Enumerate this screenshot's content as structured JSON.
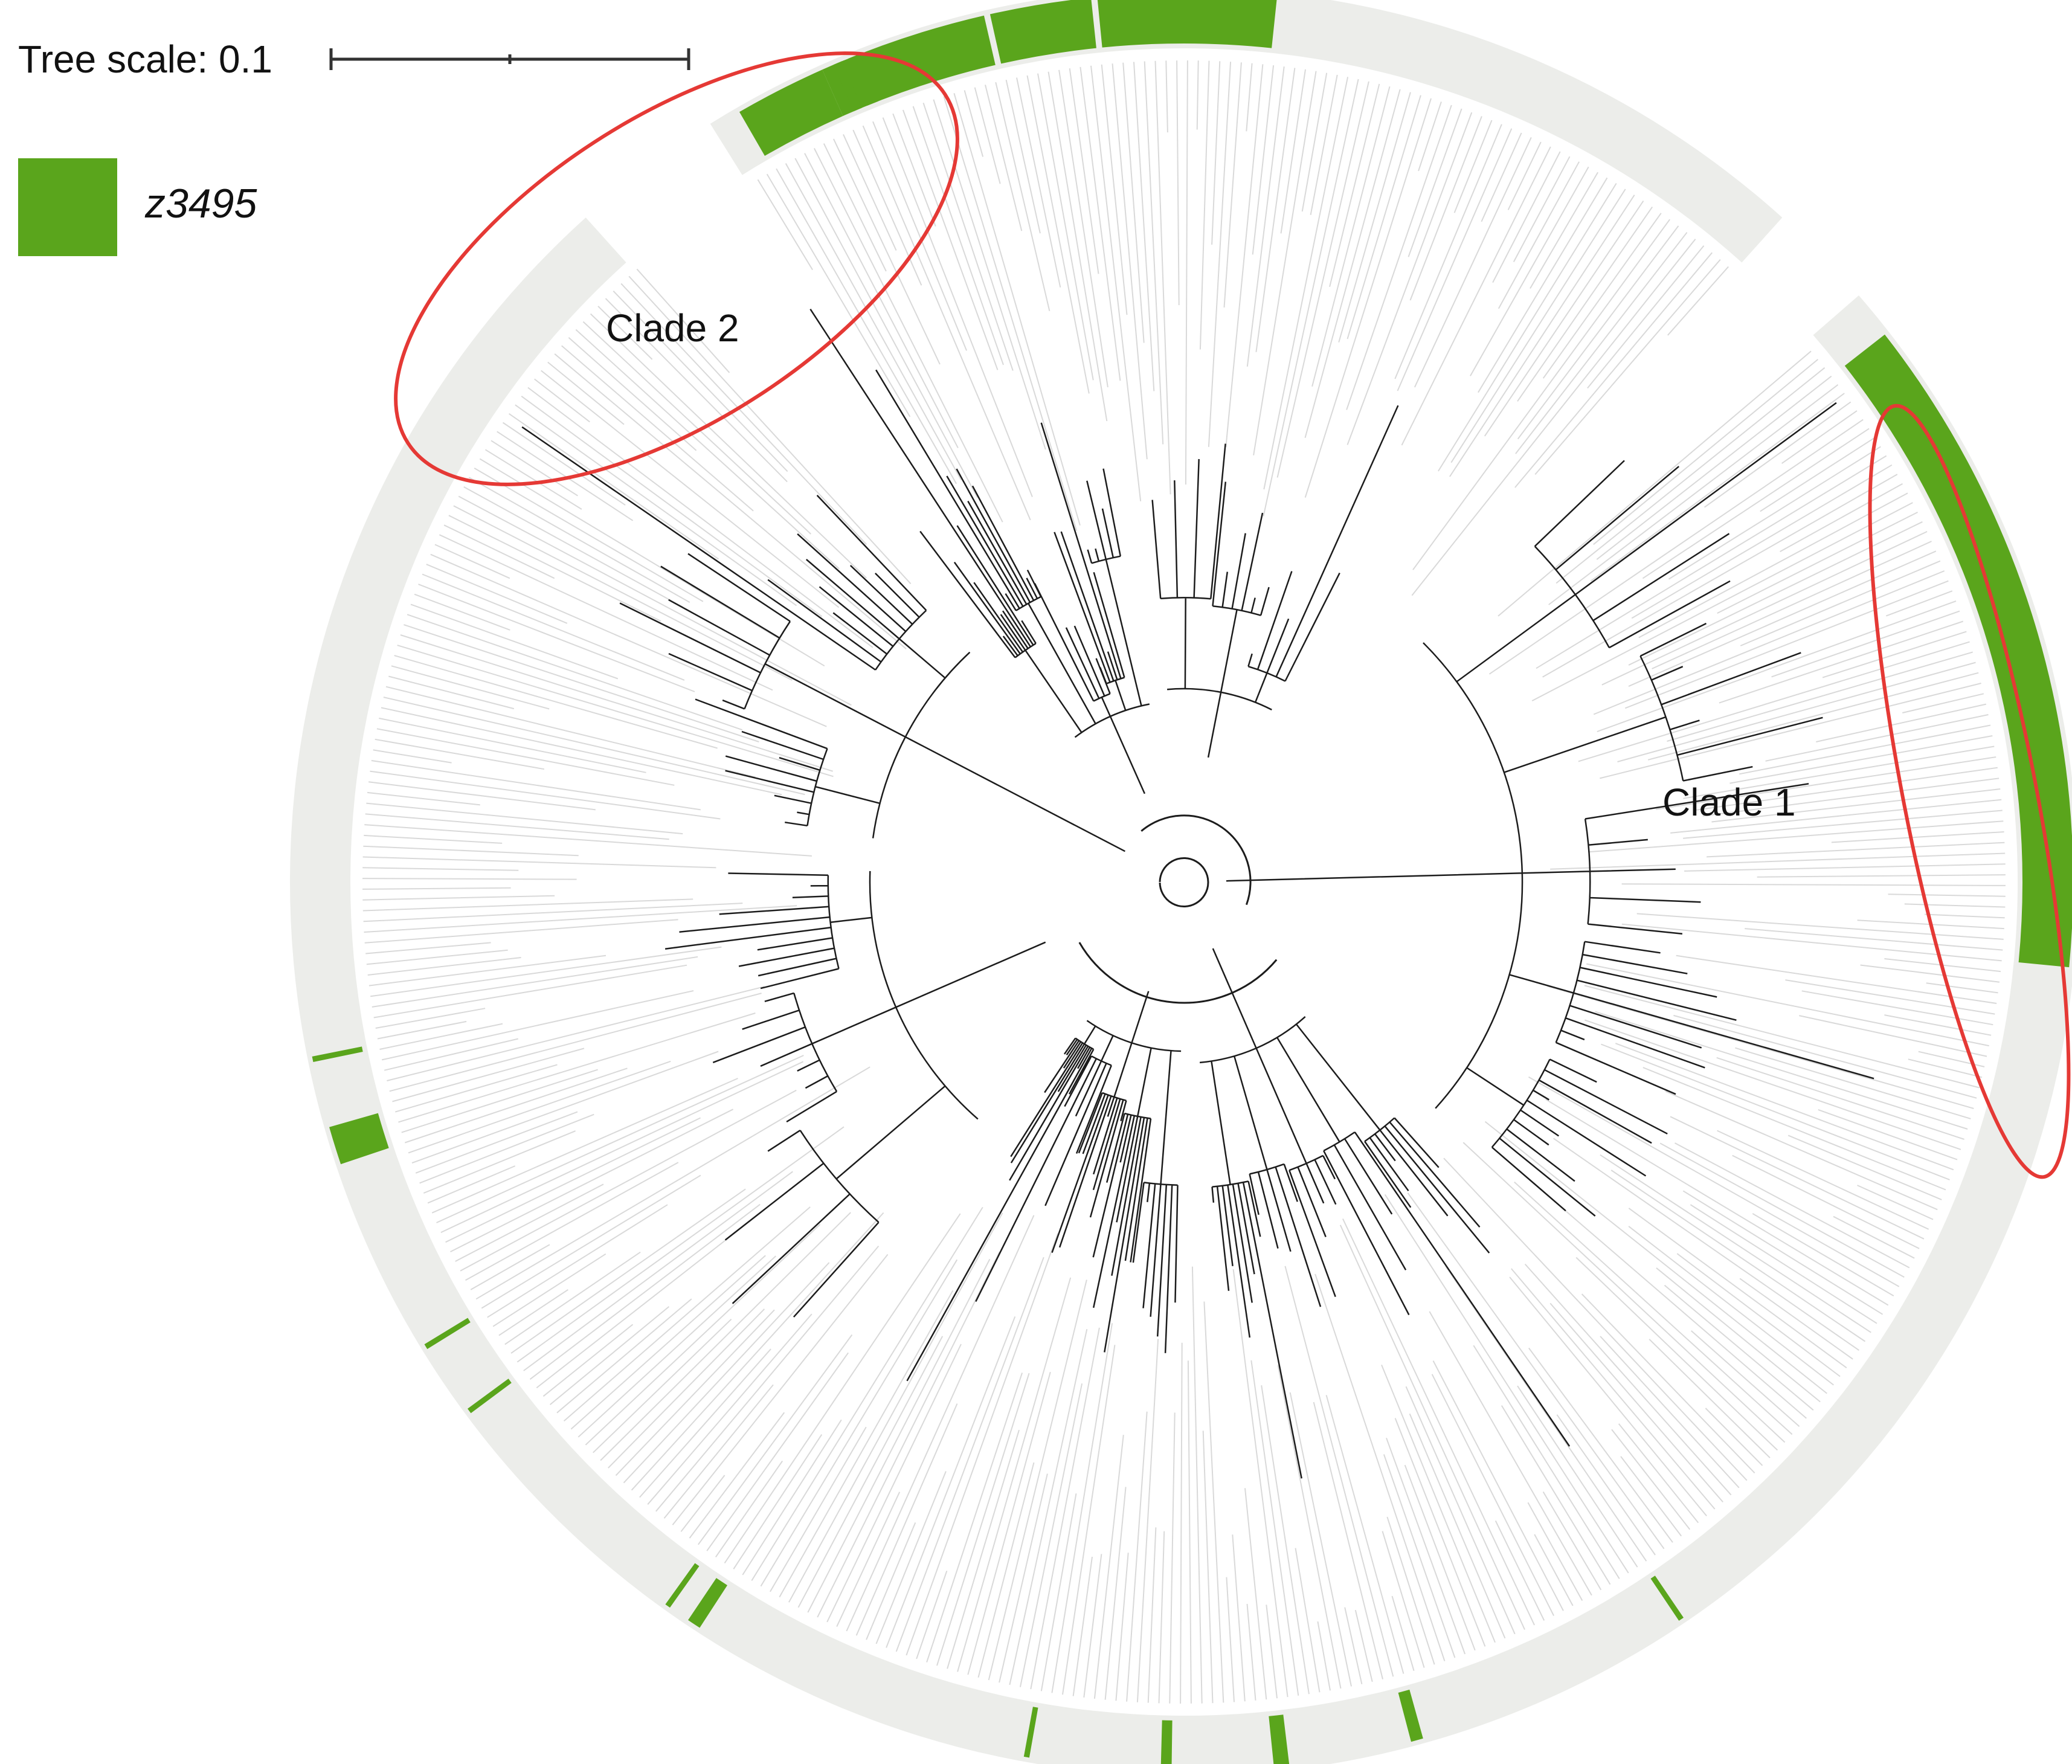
{
  "scale": {
    "label": "Tree scale: 0.1"
  },
  "legend": {
    "label": "z3495",
    "color": "#5aa51c"
  },
  "clades": [
    {
      "label": "Clade 1",
      "highlight": "#e53935"
    },
    {
      "label": "Clade 2",
      "highlight": "#e53935"
    }
  ],
  "colors": {
    "ring_background": "#ecedea",
    "present": "#5aa51c",
    "branch": "#1c1c1c",
    "guide": "#d9d9d9"
  }
}
